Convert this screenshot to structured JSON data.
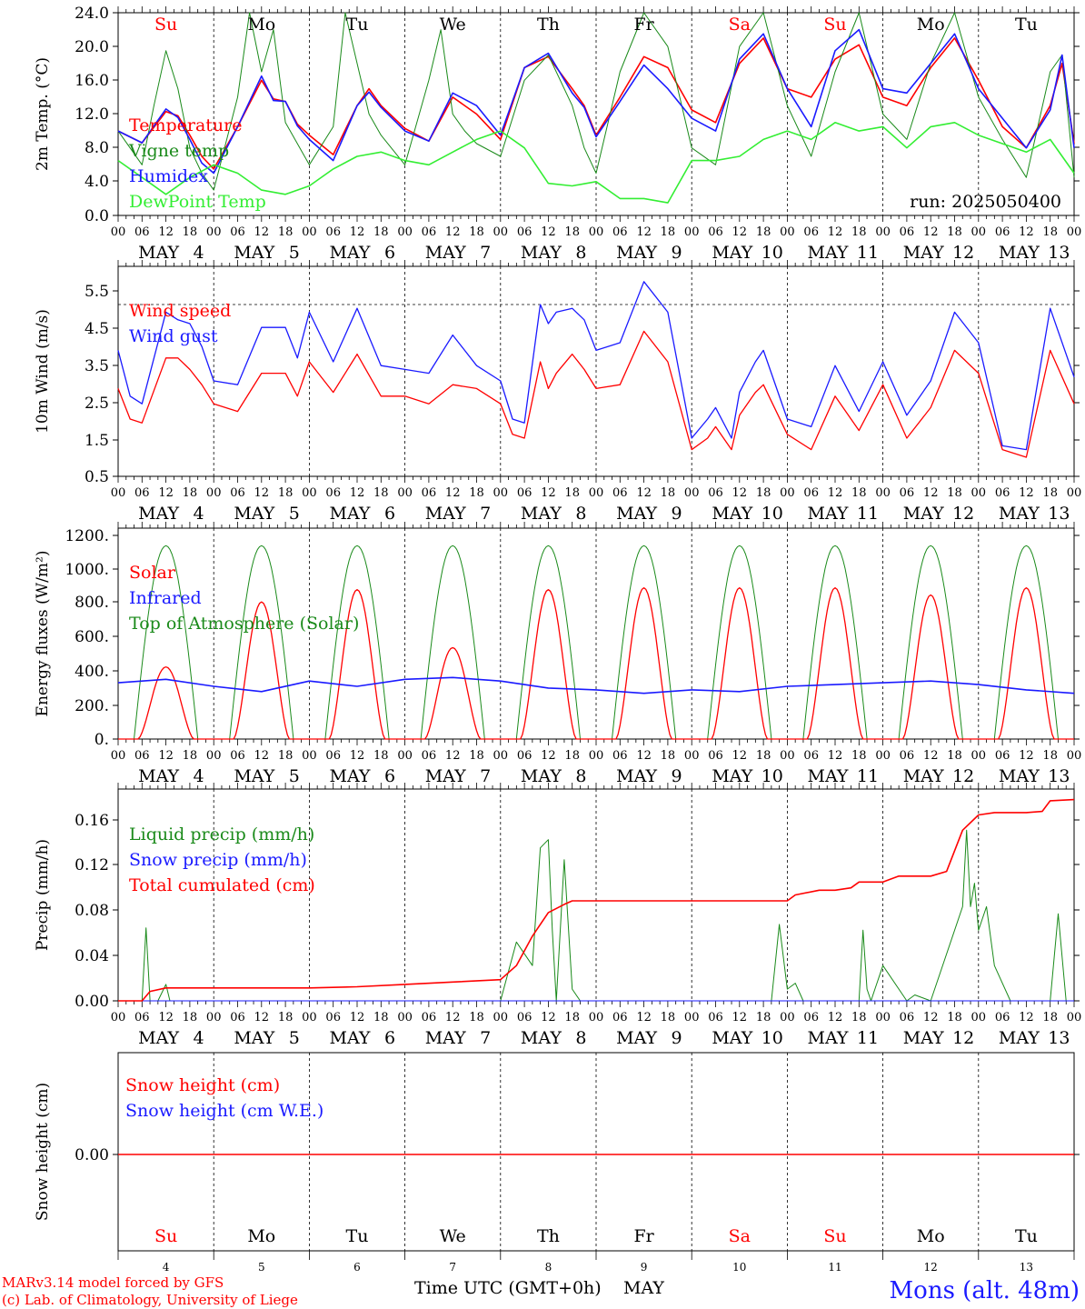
{
  "days": [
    "4",
    "5",
    "6",
    "7",
    "8",
    "9",
    "10",
    "11",
    "12",
    "13"
  ],
  "month": "MAY",
  "weekdays": [
    {
      "label": "Su",
      "color": "#ff0000"
    },
    {
      "label": "Mo",
      "color": "#000000"
    },
    {
      "label": "Tu",
      "color": "#000000"
    },
    {
      "label": "We",
      "color": "#000000"
    },
    {
      "label": "Th",
      "color": "#000000"
    },
    {
      "label": "Fr",
      "color": "#000000"
    },
    {
      "label": "Sa",
      "color": "#ff0000"
    },
    {
      "label": "Su",
      "color": "#ff0000"
    },
    {
      "label": "Mo",
      "color": "#000000"
    },
    {
      "label": "Tu",
      "color": "#000000"
    }
  ],
  "hour_ticks": [
    "00",
    "06",
    "12",
    "18"
  ],
  "footer": {
    "model": "MARv3.14 model forced by GFS",
    "copyright": "(c) Lab. of Climatology, University of Liege",
    "xlabel": "Time UTC (GMT+0h)",
    "month": "MAY",
    "location": "Mons (alt. 48m)"
  },
  "colors": {
    "red": "#ff0000",
    "green": "#1a8a1a",
    "blue": "#1a1aff",
    "lightgreen": "#33ee33"
  },
  "chart_data": [
    {
      "type": "line",
      "ylabel": "2m Temp. (°C)",
      "ylim": [
        0,
        24
      ],
      "yticks": [
        "0.0",
        "4.0",
        "8.0",
        "12.0",
        "16.0",
        "20.0",
        "24.0"
      ],
      "note": "run: 2025050400",
      "x_unit": "hours since 2025-05-04 00 UTC",
      "series": [
        {
          "name": "Temperature",
          "color": "red",
          "x": [
            0,
            6,
            12,
            15,
            18,
            21,
            24,
            30,
            36,
            39,
            42,
            45,
            48,
            54,
            60,
            63,
            66,
            72,
            78,
            84,
            90,
            96,
            102,
            108,
            114,
            117,
            120,
            126,
            132,
            138,
            144,
            150,
            156,
            162,
            168,
            174,
            180,
            186,
            192,
            198,
            204,
            210,
            216,
            222,
            228,
            234,
            237,
            240
          ],
          "y": [
            10,
            8.6,
            12.3,
            11.8,
            9.5,
            7,
            5.5,
            10.5,
            16,
            13.8,
            13.5,
            10.8,
            9.5,
            7.2,
            13,
            15,
            13,
            10.3,
            8.8,
            14,
            12,
            9,
            17.5,
            18.8,
            15,
            13,
            9.5,
            14,
            18.8,
            17.5,
            12.5,
            11,
            18,
            21,
            15,
            14,
            18.5,
            20.2,
            14,
            13,
            17.5,
            21,
            16,
            10.5,
            8,
            13,
            18,
            8.5
          ]
        },
        {
          "name": "Vigne temp",
          "color": "green",
          "x": [
            0,
            6,
            9,
            12,
            15,
            18,
            21,
            24,
            30,
            33,
            36,
            39,
            42,
            48,
            54,
            57,
            60,
            63,
            66,
            72,
            78,
            81,
            84,
            87,
            90,
            96,
            102,
            108,
            114,
            117,
            120,
            126,
            132,
            138,
            144,
            150,
            156,
            162,
            168,
            174,
            180,
            186,
            192,
            198,
            204,
            210,
            216,
            222,
            228,
            234,
            237,
            240
          ],
          "y": [
            10,
            6,
            13,
            19.5,
            15,
            8,
            5,
            3,
            14,
            24,
            17,
            22,
            11,
            6,
            10.5,
            24,
            18,
            12,
            9.5,
            6,
            16,
            22,
            12,
            10,
            8.5,
            7,
            16,
            19,
            13,
            8,
            5,
            17,
            25,
            20,
            8,
            6,
            20,
            24,
            13,
            7,
            17,
            24,
            12,
            9,
            18,
            24,
            14,
            9,
            4.5,
            17,
            19,
            4.5
          ]
        },
        {
          "name": "Humidex",
          "color": "blue",
          "x": [
            0,
            6,
            12,
            15,
            18,
            21,
            24,
            30,
            36,
            39,
            42,
            45,
            48,
            54,
            60,
            63,
            66,
            72,
            78,
            84,
            90,
            96,
            102,
            108,
            114,
            117,
            120,
            126,
            132,
            138,
            144,
            150,
            156,
            162,
            168,
            174,
            180,
            186,
            192,
            198,
            204,
            210,
            216,
            222,
            228,
            234,
            237,
            240
          ],
          "y": [
            10,
            8.6,
            12.6,
            11.6,
            9,
            6.2,
            5,
            10.5,
            16.5,
            13.6,
            13.5,
            10.6,
            9,
            6.5,
            13,
            14.6,
            12.8,
            10,
            8.8,
            14.5,
            13,
            9.5,
            17.5,
            19.2,
            14.5,
            12.8,
            9.3,
            13.5,
            17.8,
            15,
            11.5,
            10,
            18.5,
            21.5,
            15,
            10.5,
            19.5,
            22,
            15,
            14.5,
            18,
            21.5,
            15,
            11.5,
            8,
            12.5,
            19,
            8
          ]
        },
        {
          "name": "DewPoint Temp",
          "color": "lightgreen",
          "x": [
            0,
            6,
            12,
            18,
            24,
            30,
            36,
            42,
            48,
            54,
            60,
            66,
            72,
            78,
            84,
            90,
            96,
            102,
            108,
            114,
            120,
            126,
            132,
            138,
            144,
            150,
            156,
            162,
            168,
            174,
            180,
            186,
            192,
            198,
            204,
            210,
            216,
            222,
            228,
            234,
            240
          ],
          "y": [
            6.5,
            4.5,
            2.5,
            4.5,
            6,
            5,
            3,
            2.5,
            3.5,
            5.5,
            7,
            7.5,
            6.5,
            6,
            7.5,
            9,
            10,
            8,
            3.8,
            3.5,
            4,
            2,
            2,
            1.5,
            6.5,
            6.5,
            7,
            9,
            10,
            9,
            11,
            10,
            10.5,
            8,
            10.5,
            11,
            9.5,
            8.5,
            7.5,
            9,
            5
          ]
        }
      ],
      "weekday_row": true
    },
    {
      "type": "line",
      "ylabel": "10m Wind (m/s)",
      "ylim": [
        0.5,
        6
      ],
      "yticks": [
        "0.5",
        "1.5",
        "2.5",
        "3.5",
        "4.5",
        "5.5"
      ],
      "dashed_level": 5,
      "x_unit": "hours since 2025-05-04 00 UTC",
      "series": [
        {
          "name": "Wind speed",
          "color": "red",
          "x": [
            0,
            3,
            6,
            12,
            15,
            18,
            21,
            24,
            30,
            36,
            42,
            45,
            48,
            54,
            60,
            66,
            72,
            78,
            84,
            90,
            96,
            99,
            102,
            106,
            108,
            110,
            114,
            117,
            120,
            126,
            132,
            138,
            144,
            148,
            150,
            154,
            156,
            160,
            162,
            168,
            174,
            180,
            186,
            192,
            198,
            204,
            210,
            216,
            222,
            228,
            234,
            240
          ],
          "y": [
            2.8,
            2,
            1.9,
            3.6,
            3.6,
            3.3,
            2.9,
            2.4,
            2.2,
            3.2,
            3.2,
            2.6,
            3.5,
            2.7,
            3.7,
            2.6,
            2.6,
            2.4,
            2.9,
            2.8,
            2.4,
            1.6,
            1.5,
            3.5,
            2.8,
            3.2,
            3.7,
            3.3,
            2.8,
            2.9,
            4.3,
            3.5,
            1.2,
            1.5,
            1.8,
            1.2,
            2.1,
            2.7,
            2.9,
            1.6,
            1.2,
            2.6,
            1.7,
            2.9,
            1.5,
            2.3,
            3.8,
            3.2,
            1.2,
            1.0,
            3.8,
            2.4
          ]
        },
        {
          "name": "Wind gust",
          "color": "blue",
          "x": [
            0,
            3,
            6,
            12,
            15,
            18,
            21,
            24,
            30,
            36,
            42,
            45,
            48,
            54,
            60,
            66,
            72,
            78,
            84,
            90,
            96,
            99,
            102,
            106,
            108,
            110,
            114,
            117,
            120,
            126,
            132,
            138,
            144,
            148,
            150,
            154,
            156,
            160,
            162,
            168,
            174,
            180,
            186,
            192,
            198,
            204,
            210,
            216,
            222,
            228,
            234,
            240
          ],
          "y": [
            3.8,
            2.6,
            2.4,
            4.8,
            4.6,
            4.5,
            3.9,
            3.0,
            2.9,
            4.4,
            4.4,
            3.6,
            4.8,
            3.5,
            4.9,
            3.4,
            3.3,
            3.2,
            4.2,
            3.4,
            3.0,
            2.0,
            1.9,
            5.0,
            4.5,
            4.8,
            4.9,
            4.6,
            3.8,
            4.0,
            5.6,
            4.8,
            1.5,
            2.0,
            2.3,
            1.5,
            2.7,
            3.5,
            3.8,
            2.0,
            1.8,
            3.4,
            2.2,
            3.5,
            2.1,
            3.0,
            4.8,
            4.0,
            1.3,
            1.2,
            4.9,
            3.1
          ]
        }
      ],
      "weekday_row": false
    },
    {
      "type": "line",
      "ylabel": "Energy fluxes (W/m²)",
      "ylim": [
        0,
        1200
      ],
      "yticks": [
        "0.",
        "200.",
        "400.",
        "600.",
        "800.",
        "1000.",
        "1200."
      ],
      "x_unit": "hours since 2025-05-04 00 UTC",
      "series": [
        {
          "name": "Solar",
          "color": "red",
          "peaks": [
            410,
            780,
            850,
            520,
            850,
            860,
            860,
            860,
            820,
            860
          ]
        },
        {
          "name": "Infrared",
          "color": "blue",
          "x": [
            0,
            12,
            24,
            36,
            48,
            60,
            72,
            84,
            96,
            108,
            120,
            132,
            144,
            156,
            168,
            180,
            192,
            204,
            216,
            228,
            240
          ],
          "y": [
            320,
            340,
            300,
            270,
            330,
            300,
            340,
            350,
            330,
            290,
            280,
            260,
            280,
            270,
            300,
            310,
            320,
            330,
            310,
            280,
            260
          ]
        },
        {
          "name": "Top of Atmosphere (Solar)",
          "color": "green",
          "peak": 1100
        }
      ],
      "weekday_row": false
    },
    {
      "type": "line",
      "ylabel": "Precip (mm/h)",
      "ylim": [
        0,
        0.18
      ],
      "yticks": [
        "0.00",
        "0.04",
        "0.08",
        "0.12",
        "0.16"
      ],
      "x_unit": "hours since 2025-05-04 00 UTC",
      "series": [
        {
          "name": "Liquid precip (mm/h)",
          "color": "green",
          "x": [
            0,
            6,
            7,
            8,
            10,
            12,
            13,
            14,
            16,
            96,
            100,
            104,
            106,
            108,
            109,
            110,
            112,
            114,
            116,
            164,
            166,
            168,
            170,
            172,
            174,
            186,
            187,
            188,
            189,
            190,
            192,
            198,
            200,
            204,
            212,
            213,
            214,
            215,
            216,
            218,
            220,
            224,
            234,
            236,
            238,
            240
          ],
          "y": [
            0,
            0,
            0.062,
            0,
            0,
            0.014,
            0,
            0,
            0,
            0,
            0.05,
            0.03,
            0.13,
            0.137,
            0.06,
            0,
            0.12,
            0.01,
            0,
            0,
            0.065,
            0.01,
            0.015,
            0,
            0,
            0,
            0.06,
            0.01,
            0,
            0.01,
            0.03,
            0,
            0.005,
            0,
            0.08,
            0.145,
            0.08,
            0.1,
            0.06,
            0.08,
            0.03,
            0,
            0,
            0.074,
            0,
            0
          ]
        },
        {
          "name": "Snow precip (mm/h)",
          "color": "blue",
          "x": [
            0,
            240
          ],
          "y": [
            0,
            0
          ]
        },
        {
          "name": "Total cumulated (cm)",
          "color": "red",
          "x": [
            0,
            6,
            8,
            12,
            24,
            48,
            60,
            72,
            84,
            96,
            100,
            104,
            108,
            112,
            114,
            168,
            170,
            176,
            180,
            184,
            186,
            192,
            196,
            204,
            208,
            212,
            216,
            220,
            228,
            232,
            234,
            240
          ],
          "y": [
            0,
            0,
            0.008,
            0.011,
            0.011,
            0.011,
            0.012,
            0.014,
            0.016,
            0.018,
            0.03,
            0.055,
            0.075,
            0.082,
            0.085,
            0.085,
            0.09,
            0.094,
            0.094,
            0.096,
            0.101,
            0.101,
            0.106,
            0.106,
            0.11,
            0.145,
            0.158,
            0.16,
            0.16,
            0.161,
            0.17,
            0.171
          ]
        }
      ],
      "weekday_row": false
    },
    {
      "type": "line",
      "ylabel": "Snow height (cm)",
      "yticks": [
        "0.00"
      ],
      "x_unit": "hours since 2025-05-04 00 UTC",
      "series": [
        {
          "name": "Snow height (cm)",
          "color": "red",
          "x": [
            0,
            240
          ],
          "y": [
            0,
            0
          ]
        },
        {
          "name": "Snow height (cm W.E.)",
          "color": "blue",
          "x": [
            0,
            240
          ],
          "y": [
            0,
            0
          ]
        }
      ],
      "weekday_row": true
    }
  ]
}
